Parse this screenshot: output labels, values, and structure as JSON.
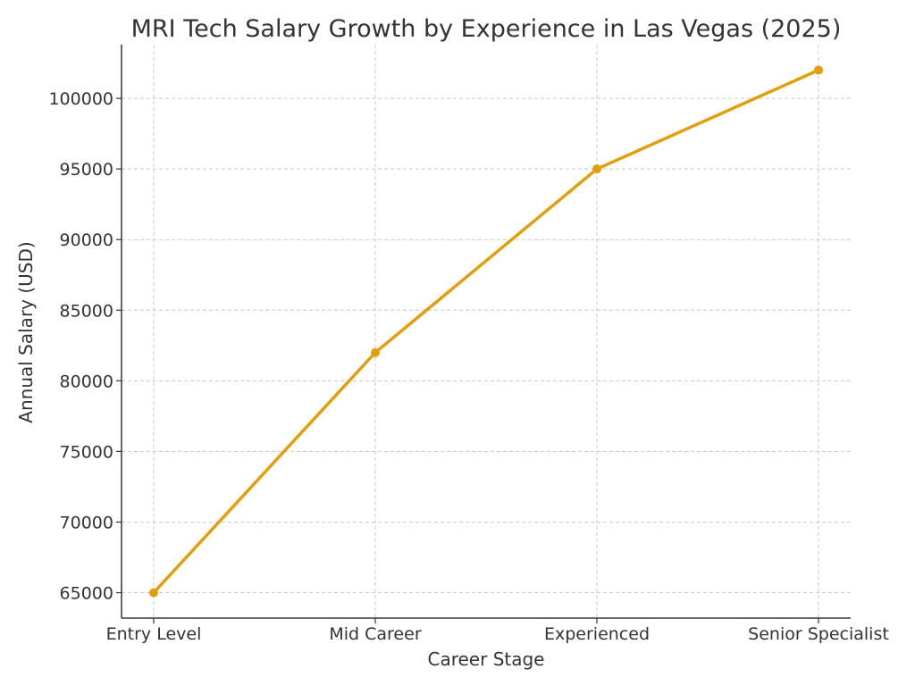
{
  "chart_data": {
    "type": "line",
    "title": "MRI Tech Salary Growth by Experience in Las Vegas (2025)",
    "xlabel": "Career Stage",
    "ylabel": "Annual Salary (USD)",
    "categories": [
      "Entry Level",
      "Mid Career",
      "Experienced",
      "Senior Specialist"
    ],
    "series": [
      {
        "values": [
          65000,
          82000,
          95000,
          102000
        ],
        "color": "#e29f0b"
      }
    ],
    "y_ticks": [
      "65000",
      "70000",
      "75000",
      "80000",
      "85000",
      "90000",
      "95000",
      "100000"
    ],
    "ylim": [
      63200,
      103800
    ],
    "grid": true,
    "legend": "none"
  }
}
